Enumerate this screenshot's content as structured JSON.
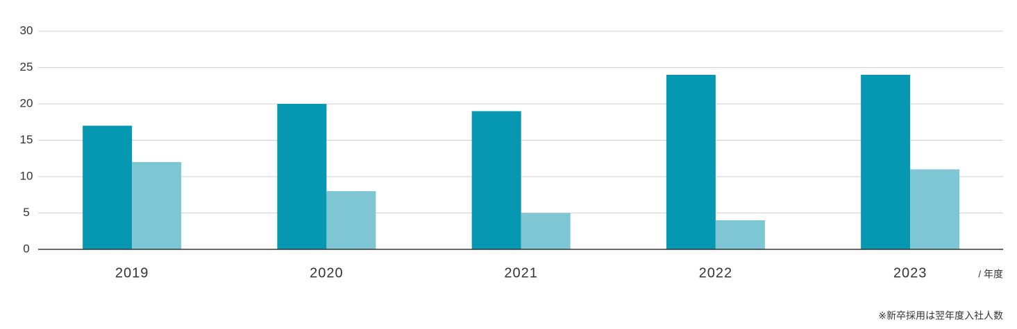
{
  "chart_data": {
    "type": "bar",
    "categories": [
      "2019",
      "2020",
      "2021",
      "2022",
      "2023"
    ],
    "series": [
      {
        "color": "#0598b0",
        "values": [
          17,
          20,
          19,
          24,
          24
        ]
      },
      {
        "color": "#7ec6d4",
        "values": [
          12,
          8,
          5,
          4,
          11
        ]
      }
    ],
    "ylim": [
      0,
      30
    ],
    "yticks": [
      0,
      5,
      10,
      15,
      20,
      25,
      30
    ],
    "grid": true,
    "x_unit_label": "/ 年度",
    "note": "※新卒採用は翌年度入社人数"
  }
}
